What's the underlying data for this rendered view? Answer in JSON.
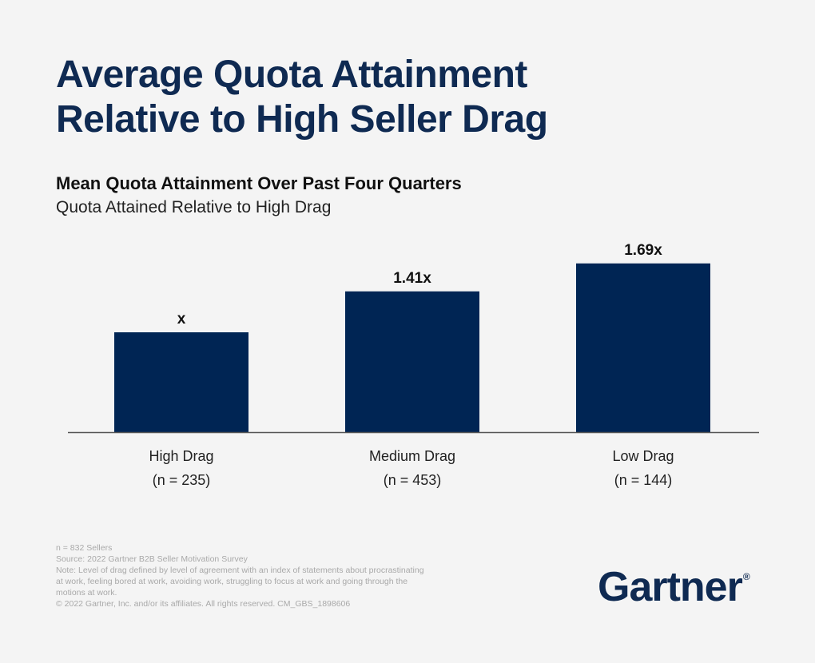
{
  "title_lines": [
    "Average Quota Attainment",
    "Relative to High Seller Drag"
  ],
  "colors": {
    "bar": "#002554",
    "title": "#0f2a52",
    "axis": "#555555",
    "footnote": "#a9a9a9"
  },
  "chart_data": {
    "type": "bar",
    "title": "Mean Quota Attainment Over Past Four Quarters",
    "subtitle": "Quota Attained Relative to High Drag",
    "categories": [
      "High Drag",
      "Medium Drag",
      "Low Drag"
    ],
    "category_notes": [
      "(n = 235)",
      "(n = 453)",
      "(n = 144)"
    ],
    "values": [
      1.0,
      1.41,
      1.69
    ],
    "data_labels": [
      "x",
      "1.41x",
      "1.69x"
    ],
    "ylim": [
      0,
      1.75
    ],
    "grid": false,
    "legend": "none"
  },
  "footnotes": [
    "n = 832 Sellers",
    "Source: 2022 Gartner B2B Seller Motivation Survey",
    "Note: Level of drag defined by level of agreement with an index of statements about procrastinating at work, feeling bored at work, avoiding work, struggling to focus at work and going through the motions at work.",
    "© 2022 Gartner, Inc. and/or its affiliates. All rights reserved. CM_GBS_1898606"
  ],
  "logo": {
    "text": "Gartner",
    "mark": "®"
  }
}
